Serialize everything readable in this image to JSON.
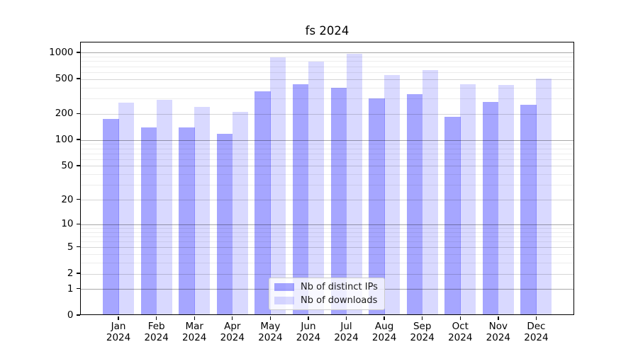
{
  "title": "fs 2024",
  "chart_data": {
    "type": "bar",
    "title": "fs 2024",
    "categories": [
      "Jan 2024",
      "Feb 2024",
      "Mar 2024",
      "Apr 2024",
      "May 2024",
      "Jun 2024",
      "Jul 2024",
      "Aug 2024",
      "Sep 2024",
      "Oct 2024",
      "Nov 2024",
      "Dec 2024"
    ],
    "x_tick_months": [
      "Jan",
      "Feb",
      "Mar",
      "Apr",
      "May",
      "Jun",
      "Jul",
      "Aug",
      "Sep",
      "Oct",
      "Nov",
      "Dec"
    ],
    "x_tick_year": "2024",
    "series": [
      {
        "name": "Nb of distinct IPs",
        "color": "rgba(0,0,255,0.35)",
        "color_hex_on_white": "#a6a6ff",
        "values": [
          170,
          135,
          135,
          115,
          355,
          425,
          385,
          290,
          325,
          180,
          265,
          245
        ]
      },
      {
        "name": "Nb of downloads",
        "color": "rgba(0,0,255,0.15)",
        "color_hex_on_white": "#d9d9ff",
        "values": [
          260,
          280,
          235,
          205,
          860,
          770,
          940,
          540,
          620,
          425,
          420,
          490
        ]
      }
    ],
    "yscale": "log1p",
    "ylim": [
      0,
      1310
    ],
    "yticks": [
      0,
      1,
      2,
      5,
      10,
      20,
      50,
      100,
      200,
      500,
      1000
    ],
    "y_decade_ticks": [
      1,
      10,
      100,
      1000
    ],
    "y_minor_gridlines": [
      3,
      4,
      6,
      7,
      8,
      9,
      30,
      40,
      60,
      70,
      80,
      90,
      300,
      400,
      600,
      700,
      800,
      900
    ],
    "grid": true,
    "legend": {
      "position": "lower-center",
      "labels": [
        "Nb of distinct IPs",
        "Nb of downloads"
      ]
    }
  }
}
